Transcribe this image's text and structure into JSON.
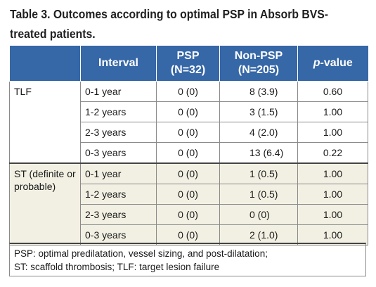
{
  "caption": "Table 3. Outcomes according to optimal PSP in Absorb BVS-treated patients.",
  "header": {
    "col0": "",
    "interval": "Interval",
    "psp_line1": "PSP",
    "psp_line2": "(N=32)",
    "nonpsp_line1": "Non-PSP",
    "nonpsp_line2": "(N=205)",
    "pvalue_p": "p",
    "pvalue_rest": "-value"
  },
  "groups": [
    {
      "label": "TLF",
      "rows": [
        {
          "interval": "0-1 year",
          "psp": "0 (0)",
          "nonpsp": "8 (3.9)",
          "p": "0.60"
        },
        {
          "interval": "1-2 years",
          "psp": "0 (0)",
          "nonpsp": "3 (1.5)",
          "p": "1.00"
        },
        {
          "interval": "2-3 years",
          "psp": "0 (0)",
          "nonpsp": "4 (2.0)",
          "p": "1.00"
        },
        {
          "interval": "0-3 years",
          "psp": "0 (0)",
          "nonpsp": "13 (6.4)",
          "p": "0.22"
        }
      ]
    },
    {
      "label": "ST (definite or probable)",
      "rows": [
        {
          "interval": "0-1 year",
          "psp": "0 (0)",
          "nonpsp": "1 (0.5)",
          "p": "1.00"
        },
        {
          "interval": "1-2 years",
          "psp": "0 (0)",
          "nonpsp": "1 (0.5)",
          "p": "1.00"
        },
        {
          "interval": "2-3 years",
          "psp": "0 (0)",
          "nonpsp": "0 (0)",
          "p": "1.00"
        },
        {
          "interval": "0-3 years",
          "psp": "0 (0)",
          "nonpsp": "2 (1.0)",
          "p": "1.00"
        }
      ]
    }
  ],
  "footnote": {
    "line1": "PSP: optimal predilatation, vessel sizing, and post-dilatation;",
    "line2": "ST: scaffold thrombosis; TLF: target lesion failure"
  },
  "colors": {
    "header_bg": "#3667a6",
    "group2_bg": "#f2f0e3"
  }
}
